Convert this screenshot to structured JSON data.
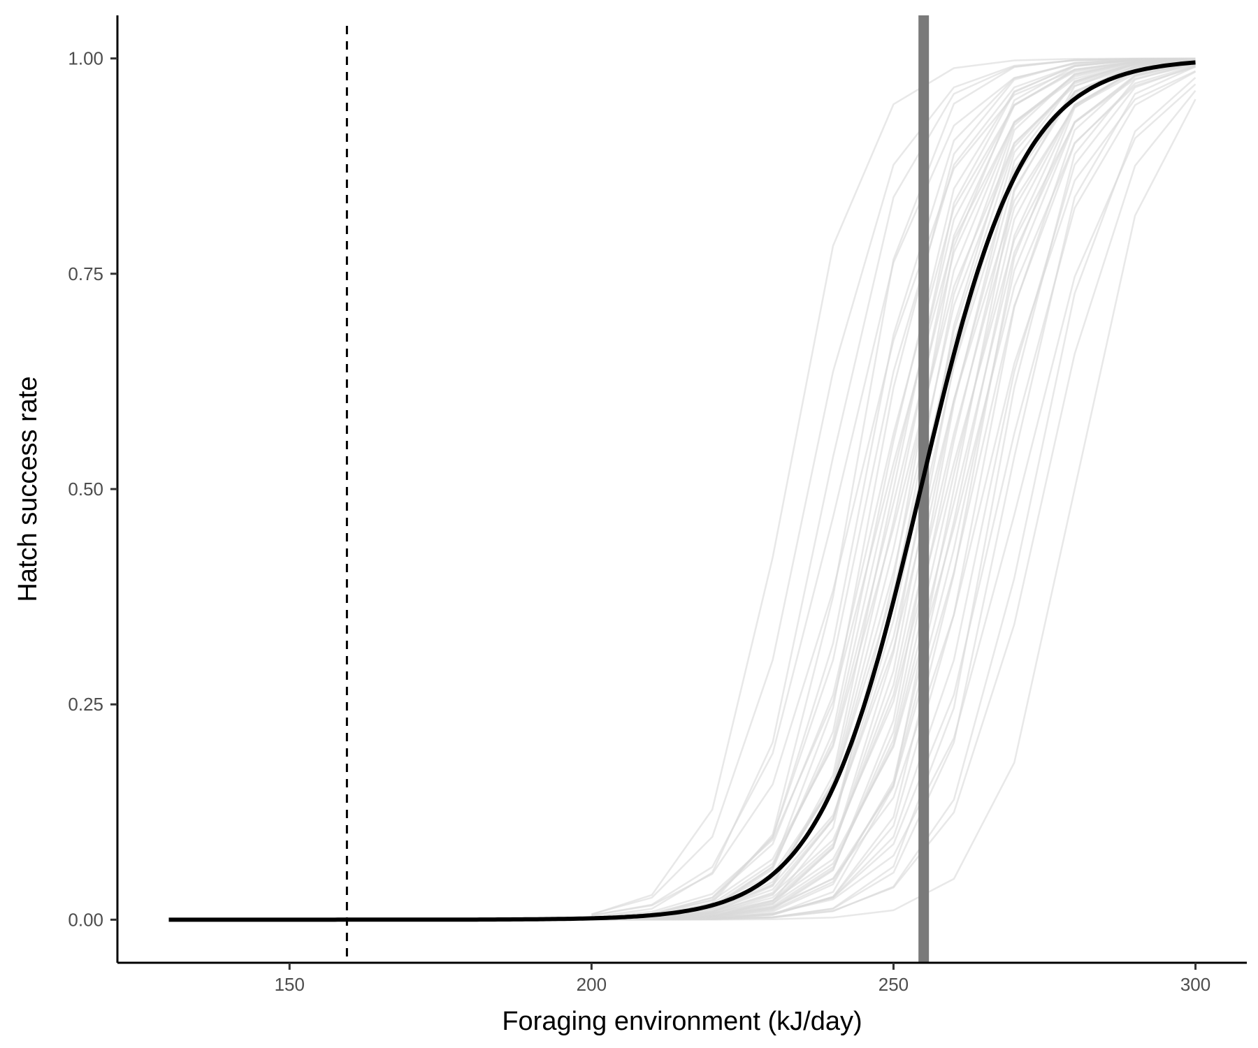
{
  "chart_data": {
    "type": "line",
    "title": "",
    "xlabel": "Foraging environment (kJ/day)",
    "ylabel": "Hatch success rate",
    "xlim": [
      121.5,
      308.5
    ],
    "ylim": [
      -0.05,
      1.05
    ],
    "x_ticks": [
      150,
      200,
      250,
      300
    ],
    "x_tick_labels": [
      "150",
      "200",
      "250",
      "300"
    ],
    "y_ticks": [
      0,
      0.25,
      0.5,
      0.75,
      1.0
    ],
    "y_tick_labels": [
      "0.00",
      "0.25",
      "0.50",
      "0.75",
      "1.00"
    ],
    "grid": false,
    "legend": "none",
    "main_curve": {
      "model": "logistic",
      "midpoint": 254.5,
      "slope": 0.118,
      "x_range": [
        130,
        300
      ],
      "color": "#000000"
    },
    "simulation_curves": {
      "model": "logistic",
      "count": 50,
      "midpoints": [
        232,
        236,
        239,
        241,
        243,
        244,
        245,
        246,
        247,
        248,
        248.5,
        249,
        249.5,
        250,
        250.5,
        251,
        251.5,
        252,
        252.5,
        253,
        253.5,
        254,
        254.5,
        255,
        255.5,
        256,
        256.5,
        257,
        257.5,
        258,
        258.5,
        259,
        259.5,
        260,
        260.5,
        261,
        261.5,
        262,
        262.5,
        263,
        264,
        265,
        266,
        267,
        268,
        269,
        271,
        273,
        275,
        280
      ],
      "slopes": [
        0.16,
        0.14,
        0.15,
        0.13,
        0.17,
        0.12,
        0.15,
        0.14,
        0.16,
        0.13,
        0.15,
        0.12,
        0.14,
        0.16,
        0.13,
        0.15,
        0.12,
        0.14,
        0.17,
        0.13,
        0.15,
        0.12,
        0.14,
        0.16,
        0.13,
        0.15,
        0.12,
        0.14,
        0.16,
        0.13,
        0.15,
        0.12,
        0.14,
        0.17,
        0.13,
        0.15,
        0.12,
        0.14,
        0.16,
        0.13,
        0.15,
        0.12,
        0.14,
        0.16,
        0.13,
        0.15,
        0.12,
        0.14,
        0.13,
        0.15
      ],
      "x_step": 10,
      "x_range": [
        200,
        300
      ],
      "color": "#d9d9d9"
    },
    "reference_lines": [
      {
        "x": 159.5,
        "style": "dashed",
        "color": "#000000"
      },
      {
        "x": 255,
        "style": "solid",
        "color": "#7a7a7a"
      }
    ]
  }
}
